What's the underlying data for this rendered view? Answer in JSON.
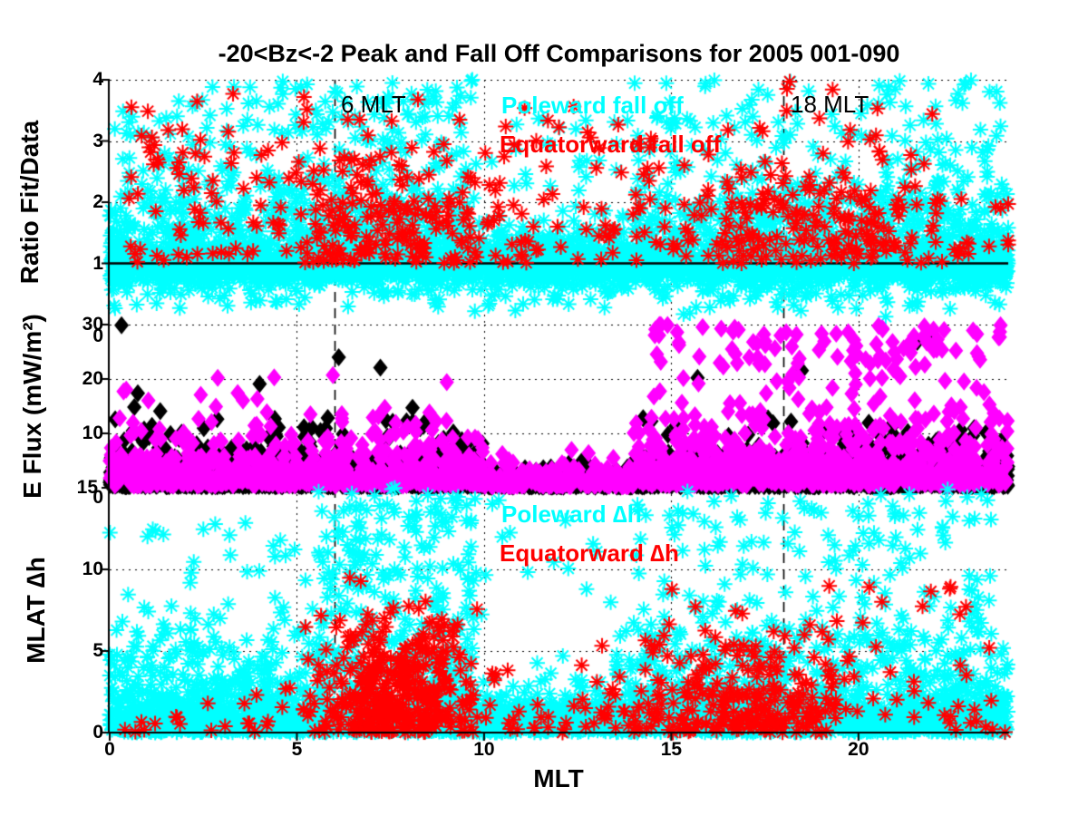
{
  "title": "-20<Bz<-2 Peak and Fall Off Comparisons for 2005 001-090",
  "xlabel": "MLT",
  "colors": {
    "poleward_cyan": "#00FFFF",
    "equatorward_red": "#FF0000",
    "eflux_black": "#000000",
    "eflux_magenta": "#FF00FF",
    "axis": "#000000",
    "background": "#FFFFFF"
  },
  "vline_labels": {
    "six": "6 MLT",
    "eighteen": "18 MLT"
  },
  "xticks": [
    {
      "v": 0,
      "l": "0"
    },
    {
      "v": 5,
      "l": "5"
    },
    {
      "v": 10,
      "l": "10"
    },
    {
      "v": 15,
      "l": "15"
    },
    {
      "v": 20,
      "l": "20"
    }
  ],
  "xlim": [
    0,
    24
  ],
  "vlines": [
    6,
    18
  ],
  "chart_data": [
    {
      "type": "scatter",
      "ylabel": "Ratio Fit/Data",
      "ylim": [
        0,
        4
      ],
      "yticks": [
        {
          "v": 4,
          "l": "4"
        },
        {
          "v": 3,
          "l": "3"
        },
        {
          "v": 2,
          "l": "2"
        },
        {
          "v": 1,
          "l": "1"
        },
        {
          "v": 0,
          "l": "0",
          "dy": 13
        }
      ],
      "grid_y": [
        2,
        3,
        4
      ],
      "ref_line_y": 1,
      "series": [
        {
          "name": "poleward fall off ratio",
          "legend": "Poleward fall off",
          "color_key": "poleward_cyan",
          "marker": "asterisk",
          "clusters": [
            {
              "n": 2400,
              "x": {
                "u": [
                  0,
                  24
                ]
              },
              "y": {
                "g": [
                  1.0,
                  0.12
                ]
              },
              "clip": [
                0.55,
                1.5
              ]
            },
            {
              "n": 450,
              "x": {
                "u": [
                  0,
                  24
                ]
              },
              "y": {
                "g": [
                  1.0,
                  0.3
                ]
              },
              "clip": [
                0.05,
                4
              ]
            },
            {
              "n": 600,
              "x": {
                "u": [
                  0,
                  24
                ]
              },
              "y": {
                "hg": [
                  1,
                  -0.3
                ]
              },
              "clip": [
                0.05,
                1
              ]
            },
            {
              "n": 520,
              "x": {
                "u": [
                  0,
                  9.6
                ]
              },
              "y": {
                "hg": [
                  1,
                  0.62
                ]
              },
              "clip": [
                1,
                4
              ]
            },
            {
              "n": 130,
              "x": {
                "u": [
                  9.6,
                  14
                ]
              },
              "y": {
                "hg": [
                  1,
                  0.4
                ]
              },
              "clip": [
                1,
                3.4
              ]
            },
            {
              "n": 560,
              "x": {
                "u": [
                  14,
                  24
                ]
              },
              "y": {
                "hg": [
                  1,
                  0.62
                ]
              },
              "clip": [
                1,
                4
              ]
            },
            {
              "n": 70,
              "x": {
                "u": [
                  0,
                  4.5
                ]
              },
              "y": {
                "u": [
                  1.9,
                  3.9
                ]
              }
            },
            {
              "n": 140,
              "x": {
                "u": [
                  4.5,
                  9.8
                ]
              },
              "y": {
                "u": [
                  1.8,
                  4
                ]
              }
            },
            {
              "n": 25,
              "x": {
                "u": [
                  9.8,
                  14
                ]
              },
              "y": {
                "u": [
                  1.8,
                  3.4
                ]
              }
            },
            {
              "n": 160,
              "x": {
                "u": [
                  14,
                  23.9
                ]
              },
              "y": {
                "u": [
                  1.8,
                  4
                ]
              }
            }
          ]
        },
        {
          "name": "equatorward fall off ratio",
          "legend": "Equatorward fall off",
          "color_key": "equatorward_red",
          "marker": "asterisk",
          "clusters": [
            {
              "n": 180,
              "x": {
                "g": [
                  7.3,
                  1.7
                ]
              },
              "y": {
                "hg": [
                  1,
                  1.05
                ]
              },
              "clip": [
                0.75,
                4
              ]
            },
            {
              "n": 210,
              "x": {
                "g": [
                  18.6,
                  2.4
                ]
              },
              "y": {
                "hg": [
                  1,
                  1.0
                ]
              },
              "clip": [
                0.75,
                4
              ]
            },
            {
              "n": 90,
              "x": {
                "u": [
                  0,
                  24
                ]
              },
              "y": {
                "hg": [
                  1,
                  0.75
                ]
              },
              "clip": [
                0.7,
                4
              ]
            },
            {
              "n": 60,
              "x": {
                "u": [
                  0.5,
                  5.5
                ]
              },
              "y": {
                "u": [
                  1.0,
                  3.9
                ]
              }
            },
            {
              "n": 28,
              "x": {
                "u": [
                  10,
                  14.5
                ]
              },
              "y": {
                "u": [
                  1.0,
                  3.6
                ]
              }
            }
          ]
        }
      ]
    },
    {
      "type": "scatter",
      "ylabel": "E Flux (mW/m²)",
      "ylim": [
        0,
        30
      ],
      "yticks": [
        {
          "v": 30,
          "l": "30"
        },
        {
          "v": 20,
          "l": "20"
        },
        {
          "v": 10,
          "l": "10"
        },
        {
          "v": 0,
          "l": "0",
          "dy": 11
        }
      ],
      "grid_y": [
        10,
        20,
        30
      ],
      "series": [
        {
          "name": "E flux black diamonds",
          "legend": "",
          "color_key": "eflux_black",
          "marker": "diamond",
          "clusters": [
            {
              "n": 1500,
              "x": {
                "u": [
                  0,
                  10
                ]
              },
              "y": {
                "ex": [
                  0.25,
                  2.1
                ]
              },
              "clip": [
                0,
                9.5
              ]
            },
            {
              "n": 380,
              "x": {
                "u": [
                  10,
                  14
                ]
              },
              "y": {
                "ex": [
                  0.2,
                  0.9
                ]
              },
              "clip": [
                0,
                5.5
              ]
            },
            {
              "n": 1350,
              "x": {
                "u": [
                  14,
                  24
                ]
              },
              "y": {
                "ex": [
                  0.25,
                  2.0
                ]
              },
              "clip": [
                0,
                9
              ]
            },
            {
              "n": 30,
              "x": {
                "u": [
                  0,
                  10
                ]
              },
              "y": {
                "u": [
                  9,
                  13
                ]
              }
            },
            {
              "n": 25,
              "x": {
                "u": [
                  14,
                  24
                ]
              },
              "y": {
                "u": [
                  9,
                  12.5
                ]
              }
            },
            {
              "n": 7,
              "x": {
                "u": [
                  0,
                  9.5
                ]
              },
              "y": {
                "u": [
                  12,
                  23
                ]
              }
            },
            {
              "n": 1,
              "x": {
                "u": [
                  0.3,
                  0.45
                ]
              },
              "y": {
                "u": [
                  29.6,
                  30
                ]
              }
            },
            {
              "n": 1,
              "x": {
                "u": [
                  6.1,
                  6.35
                ]
              },
              "y": {
                "u": [
                  24,
                  24.5
                ]
              }
            },
            {
              "n": 5,
              "x": {
                "u": [
                  14,
                  18.5
                ]
              },
              "y": {
                "u": [
                  12,
                  23
                ]
              }
            },
            {
              "n": 2,
              "x": {
                "u": [
                  21.5,
                  22.4
                ]
              },
              "y": {
                "u": [
                  26.5,
                  28.2
                ]
              }
            }
          ]
        },
        {
          "name": "E flux magenta diamonds",
          "legend": "",
          "color_key": "eflux_magenta",
          "marker": "diamond",
          "clusters": [
            {
              "n": 700,
              "x": {
                "u": [
                  0,
                  10
                ]
              },
              "y": {
                "ex": [
                  0.4,
                  3.0
                ]
              },
              "clip": [
                0,
                14
              ]
            },
            {
              "n": 210,
              "x": {
                "u": [
                  10,
                  14
                ]
              },
              "y": {
                "ex": [
                  0.3,
                  1.3
                ]
              },
              "clip": [
                0,
                8
              ]
            },
            {
              "n": 780,
              "x": {
                "u": [
                  14,
                  24
                ]
              },
              "y": {
                "ex": [
                  0.5,
                  3.4
                ]
              },
              "clip": [
                0,
                15
              ]
            },
            {
              "n": 135,
              "x": {
                "u": [
                  14.5,
                  24
                ]
              },
              "y": {
                "u": [
                  8,
                  30
                ]
              }
            },
            {
              "n": 28,
              "x": {
                "u": [
                  0,
                  9.5
                ]
              },
              "y": {
                "u": [
                  8,
                  21
                ]
              }
            },
            {
              "n": 3,
              "x": {
                "u": [
                  14.2,
                  14.9
                ]
              },
              "y": {
                "u": [
                  28,
                  30
                ]
              }
            },
            {
              "n": 20,
              "x": {
                "u": [
                  16,
                  24
                ]
              },
              "y": {
                "u": [
                  22,
                  29
                ]
              }
            }
          ]
        }
      ]
    },
    {
      "type": "scatter",
      "ylabel": "MLAT ∆h",
      "ylim": [
        0,
        15
      ],
      "yticks": [
        {
          "v": 15,
          "l": "15",
          "dx": -6
        },
        {
          "v": 10,
          "l": "10"
        },
        {
          "v": 5,
          "l": "5"
        },
        {
          "v": 0,
          "l": "0"
        }
      ],
      "grid_y": [
        5,
        10,
        15
      ],
      "series": [
        {
          "name": "poleward delta-h",
          "legend": "Poleward ∆h",
          "color_key": "poleward_cyan",
          "marker": "asterisk",
          "clusters": [
            {
              "n": 1900,
              "x": {
                "u": [
                  0,
                  24
                ]
              },
              "y": {
                "hg": [
                  0,
                  0.85
                ]
              },
              "clip": [
                0,
                15
              ]
            },
            {
              "n": 650,
              "x": {
                "u": [
                  0,
                  9.6
                ]
              },
              "y": {
                "hg": [
                  0,
                  3.0
                ]
              },
              "clip": [
                0,
                15
              ]
            },
            {
              "n": 140,
              "x": {
                "u": [
                  9.6,
                  13.5
                ]
              },
              "y": {
                "hg": [
                  0,
                  1.7
                ]
              },
              "clip": [
                0,
                15
              ]
            },
            {
              "n": 650,
              "x": {
                "u": [
                  13.5,
                  24
                ]
              },
              "y": {
                "hg": [
                  0,
                  3.0
                ]
              },
              "clip": [
                0,
                15
              ]
            },
            {
              "n": 180,
              "x": {
                "u": [
                  5.5,
                  9.8
                ]
              },
              "y": {
                "u": [
                  4,
                  15
                ]
              }
            },
            {
              "n": 170,
              "x": {
                "u": [
                  14,
                  23.6
                ]
              },
              "y": {
                "u": [
                  4,
                  15
                ]
              }
            },
            {
              "n": 45,
              "x": {
                "u": [
                  0,
                  5
                ]
              },
              "y": {
                "u": [
                  4,
                  13
                ]
              }
            },
            {
              "n": 14,
              "x": {
                "u": [
                  9.8,
                  13.5
                ]
              },
              "y": {
                "u": [
                  4,
                  14.6
                ]
              }
            }
          ]
        },
        {
          "name": "equatorward delta-h",
          "legend": "Equatorward ∆h",
          "color_key": "equatorward_red",
          "marker": "asterisk",
          "clusters": [
            {
              "n": 380,
              "x": {
                "g": [
                  7.7,
                  1.1
                ]
              },
              "y": {
                "hg": [
                  0,
                  3.6
                ]
              },
              "clip": [
                0,
                12.6
              ]
            },
            {
              "n": 230,
              "x": {
                "g": [
                  16.9,
                  1.6
                ]
              },
              "y": {
                "hg": [
                  0,
                  3.0
                ]
              },
              "clip": [
                0,
                11
              ]
            },
            {
              "n": 100,
              "x": {
                "u": [
                  0,
                  24
                ]
              },
              "y": {
                "hg": [
                  0,
                  1.1
                ]
              },
              "clip": [
                0,
                15
              ]
            },
            {
              "n": 28,
              "x": {
                "u": [
                  19,
                  23.6
                ]
              },
              "y": {
                "u": [
                  0.5,
                  9
                ]
              }
            }
          ]
        }
      ]
    }
  ]
}
